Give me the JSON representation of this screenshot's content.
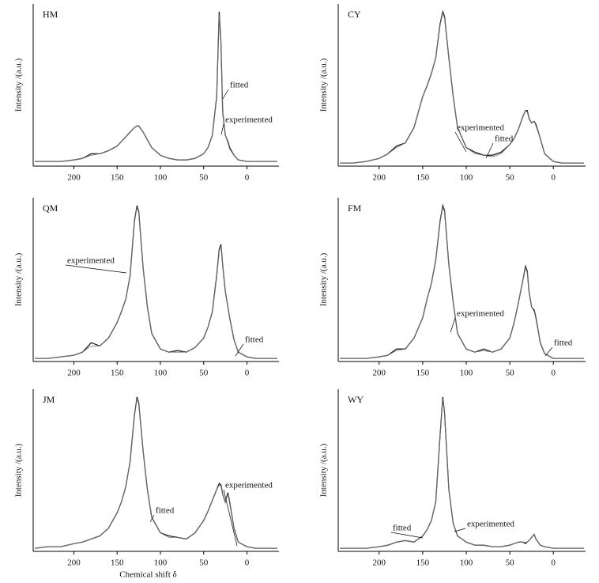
{
  "chart_data": [
    {
      "type": "line",
      "title": "HM",
      "y_label": "Intensity /(a.u.)",
      "x": [
        245,
        230,
        215,
        200,
        190,
        180,
        170,
        160,
        150,
        145,
        140,
        135,
        130,
        127,
        125,
        120,
        115,
        110,
        100,
        90,
        80,
        70,
        60,
        50,
        45,
        40,
        35,
        32,
        30,
        28,
        25,
        22,
        20,
        15,
        10,
        0,
        -10,
        -20,
        -35
      ],
      "xlim": [
        247,
        -37
      ],
      "ylim": [
        0,
        105
      ],
      "xticks": [
        200,
        150,
        100,
        50,
        0
      ],
      "series": [
        {
          "name": "experimented",
          "color": "#222222",
          "values": [
            3,
            3,
            3,
            4,
            5,
            8,
            8,
            10,
            13,
            16,
            19,
            22,
            25,
            26,
            26,
            22,
            17,
            12,
            7,
            5,
            4,
            4,
            5,
            8,
            12,
            20,
            45,
            100,
            80,
            35,
            20,
            16,
            12,
            7,
            4,
            3,
            3,
            3,
            3
          ]
        },
        {
          "name": "fitted",
          "color": "#777777",
          "values": [
            3,
            3,
            3,
            4,
            5,
            7,
            8,
            10,
            13,
            16,
            19,
            22,
            25,
            26,
            26,
            22,
            17,
            12,
            7,
            5,
            4,
            4,
            5,
            8,
            12,
            20,
            44,
            98,
            79,
            35,
            20,
            15,
            11,
            7,
            4,
            3,
            3,
            3,
            3
          ]
        }
      ]
    },
    {
      "type": "line",
      "title": "CY",
      "y_label": "Intensity /(a.u.)",
      "x": [
        245,
        230,
        215,
        200,
        190,
        180,
        170,
        160,
        150,
        145,
        140,
        135,
        130,
        127,
        125,
        120,
        115,
        110,
        100,
        90,
        80,
        70,
        60,
        50,
        45,
        40,
        35,
        32,
        30,
        28,
        25,
        22,
        20,
        15,
        10,
        0,
        -10,
        -20,
        -35
      ],
      "xlim": [
        247,
        -37
      ],
      "ylim": [
        0,
        105
      ],
      "xticks": [
        200,
        150,
        100,
        50,
        0
      ],
      "series": [
        {
          "name": "experimented",
          "color": "#222222",
          "values": [
            2,
            2,
            3,
            5,
            8,
            13,
            15,
            25,
            45,
            52,
            60,
            70,
            92,
            100,
            97,
            70,
            45,
            25,
            12,
            9,
            7,
            7,
            9,
            14,
            18,
            24,
            32,
            36,
            36,
            31,
            28,
            29,
            27,
            18,
            8,
            3,
            2,
            2,
            2
          ]
        },
        {
          "name": "fitted",
          "color": "#777777",
          "values": [
            2,
            2,
            3,
            5,
            8,
            12,
            15,
            25,
            45,
            52,
            60,
            70,
            91,
            99,
            96,
            70,
            45,
            25,
            12,
            8,
            7,
            6,
            8,
            14,
            18,
            24,
            32,
            36,
            35,
            31,
            28,
            29,
            26,
            18,
            8,
            3,
            2,
            2,
            2
          ]
        }
      ]
    },
    {
      "type": "line",
      "title": "QM",
      "y_label": "Intensity /(a.u.)",
      "x": [
        245,
        230,
        215,
        200,
        190,
        180,
        170,
        160,
        150,
        145,
        140,
        135,
        130,
        127,
        125,
        120,
        115,
        110,
        100,
        90,
        80,
        70,
        60,
        50,
        45,
        40,
        35,
        32,
        30,
        28,
        25,
        22,
        20,
        15,
        10,
        0,
        -10,
        -20,
        -35
      ],
      "xlim": [
        247,
        -37
      ],
      "ylim": [
        0,
        105
      ],
      "xticks": [
        200,
        150,
        100,
        50,
        0
      ],
      "series": [
        {
          "name": "experimented",
          "color": "#222222",
          "values": [
            2,
            2,
            3,
            4,
            6,
            12,
            10,
            15,
            25,
            32,
            40,
            55,
            90,
            100,
            96,
            60,
            35,
            18,
            8,
            6,
            7,
            6,
            9,
            15,
            22,
            32,
            55,
            72,
            75,
            62,
            45,
            35,
            28,
            14,
            6,
            3,
            2,
            2,
            2
          ]
        },
        {
          "name": "fitted",
          "color": "#777777",
          "values": [
            2,
            2,
            3,
            4,
            6,
            10,
            10,
            15,
            25,
            32,
            40,
            55,
            89,
            99,
            95,
            60,
            35,
            18,
            8,
            6,
            6,
            6,
            9,
            15,
            22,
            32,
            54,
            71,
            74,
            62,
            45,
            35,
            28,
            14,
            6,
            3,
            2,
            2,
            2
          ]
        }
      ]
    },
    {
      "type": "line",
      "title": "FM",
      "y_label": "Intensity /(a.u.)",
      "x": [
        245,
        230,
        215,
        200,
        190,
        180,
        170,
        160,
        150,
        145,
        140,
        135,
        130,
        127,
        125,
        120,
        115,
        110,
        100,
        90,
        80,
        70,
        60,
        50,
        45,
        40,
        35,
        32,
        30,
        28,
        25,
        22,
        20,
        15,
        10,
        0,
        -10,
        -20,
        -35
      ],
      "xlim": [
        247,
        -37
      ],
      "ylim": [
        0,
        105
      ],
      "xticks": [
        200,
        150,
        100,
        50,
        0
      ],
      "series": [
        {
          "name": "experimented",
          "color": "#222222",
          "values": [
            2,
            2,
            2,
            3,
            4,
            8,
            8,
            15,
            28,
            40,
            50,
            65,
            90,
            100,
            97,
            62,
            38,
            18,
            8,
            6,
            8,
            6,
            8,
            15,
            25,
            38,
            52,
            61,
            58,
            45,
            35,
            33,
            28,
            12,
            5,
            2,
            2,
            2,
            2
          ]
        },
        {
          "name": "fitted",
          "color": "#777777",
          "values": [
            2,
            2,
            2,
            3,
            4,
            7,
            8,
            15,
            28,
            40,
            50,
            65,
            89,
            99,
            96,
            62,
            38,
            18,
            8,
            6,
            7,
            6,
            8,
            15,
            25,
            38,
            52,
            60,
            57,
            45,
            35,
            32,
            27,
            12,
            5,
            2,
            2,
            2,
            2
          ]
        }
      ]
    },
    {
      "type": "line",
      "title": "JM",
      "y_label": "Intensity /(a.u.)",
      "x_label": "Chemical shift δ",
      "x": [
        245,
        230,
        215,
        200,
        190,
        180,
        170,
        160,
        150,
        145,
        140,
        135,
        130,
        127,
        125,
        120,
        115,
        110,
        100,
        90,
        80,
        70,
        60,
        50,
        45,
        40,
        35,
        32,
        30,
        28,
        25,
        22,
        20,
        15,
        10,
        0,
        -10,
        -20,
        -35
      ],
      "xlim": [
        247,
        -37
      ],
      "ylim": [
        0,
        105
      ],
      "xticks": [
        200,
        150,
        100,
        50,
        0
      ],
      "series": [
        {
          "name": "experimented",
          "color": "#222222",
          "values": [
            2,
            3,
            3,
            5,
            6,
            8,
            10,
            15,
            25,
            32,
            42,
            58,
            88,
            100,
            96,
            65,
            40,
            22,
            12,
            10,
            9,
            8,
            12,
            20,
            26,
            33,
            40,
            44,
            43,
            37,
            32,
            38,
            32,
            15,
            6,
            3,
            2,
            2,
            2
          ]
        },
        {
          "name": "fitted",
          "color": "#777777",
          "values": [
            2,
            3,
            3,
            5,
            6,
            8,
            10,
            15,
            25,
            32,
            42,
            58,
            87,
            99,
            95,
            65,
            40,
            22,
            12,
            9,
            9,
            8,
            12,
            20,
            26,
            33,
            40,
            43,
            42,
            37,
            32,
            37,
            31,
            15,
            6,
            3,
            2,
            2,
            2
          ]
        }
      ]
    },
    {
      "type": "line",
      "title": "WY",
      "y_label": "Intensity /(a.u.)",
      "x": [
        245,
        230,
        215,
        200,
        190,
        180,
        170,
        160,
        150,
        145,
        140,
        135,
        130,
        127,
        125,
        120,
        115,
        110,
        100,
        90,
        80,
        70,
        60,
        50,
        45,
        40,
        35,
        32,
        30,
        28,
        25,
        22,
        20,
        15,
        10,
        0,
        -10,
        -20,
        -35
      ],
      "xlim": [
        247,
        -37
      ],
      "ylim": [
        0,
        105
      ],
      "xticks": [
        200,
        150,
        100,
        50,
        0
      ],
      "series": [
        {
          "name": "experimented",
          "color": "#222222",
          "values": [
            2,
            2,
            2,
            3,
            4,
            6,
            7,
            6,
            10,
            14,
            20,
            32,
            75,
            100,
            90,
            40,
            18,
            10,
            6,
            4,
            4,
            3,
            3,
            4,
            5,
            6,
            6,
            5,
            6,
            7,
            9,
            11,
            8,
            4,
            3,
            2,
            2,
            2,
            2
          ]
        },
        {
          "name": "fitted",
          "color": "#777777",
          "values": [
            2,
            2,
            2,
            3,
            4,
            6,
            7,
            6,
            10,
            14,
            20,
            32,
            74,
            99,
            89,
            40,
            18,
            10,
            6,
            4,
            4,
            3,
            3,
            4,
            5,
            6,
            6,
            6,
            6,
            7,
            9,
            11,
            8,
            4,
            3,
            2,
            2,
            2,
            2
          ]
        }
      ]
    }
  ]
}
